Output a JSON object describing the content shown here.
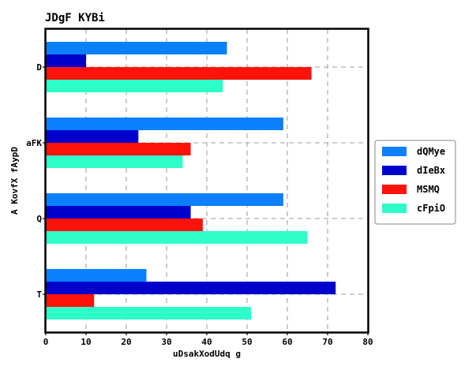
{
  "chart_data": {
    "type": "bar",
    "orientation": "horizontal",
    "title": "JDgF KYBi",
    "xlabel": "uDsakXodUdq g",
    "ylabel": "A KovfX fAypD",
    "categories": [
      "D",
      "aFK",
      "Q",
      "T"
    ],
    "xlim": [
      0,
      80
    ],
    "xticks": [
      "0",
      "10",
      "20",
      "30",
      "40",
      "50",
      "60",
      "70",
      "80"
    ],
    "grid": true,
    "legend_position": "right",
    "series": [
      {
        "name": "dQMye",
        "color": "#0a80ff",
        "values": [
          45,
          59,
          59,
          25
        ]
      },
      {
        "name": "dIeBx",
        "color": "#0000cd",
        "values": [
          10,
          23,
          36,
          72
        ]
      },
      {
        "name": "MSMQ",
        "color": "#ff1207",
        "values": [
          66,
          36,
          39,
          12
        ]
      },
      {
        "name": "cFpiO",
        "color": "#2effc8",
        "values": [
          44,
          34,
          65,
          51
        ]
      }
    ]
  }
}
